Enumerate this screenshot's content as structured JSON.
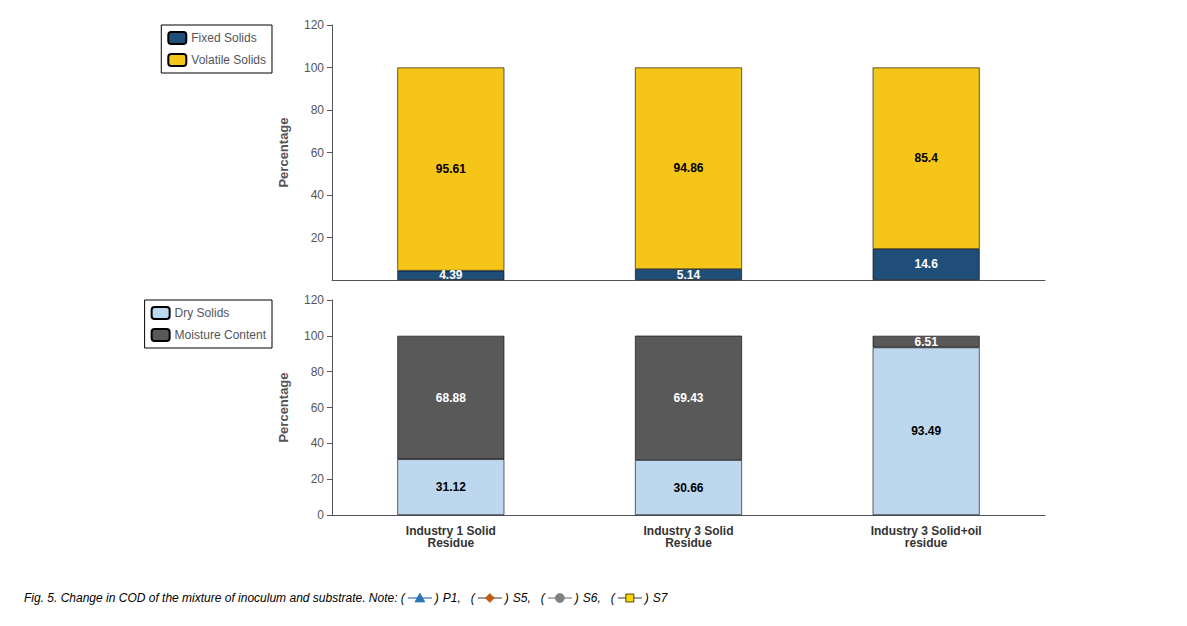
{
  "chart_data": [
    {
      "type": "bar",
      "stacked": true,
      "data_labels": true,
      "grid": false,
      "legend": "upper left",
      "tick_labels": "y",
      "ylabel": "Percentage",
      "categories": [
        "Industry 1 Solid\nResidue",
        "Industry 3 Solid\nResidue",
        "Industry 3 Solid+oil\nresidue"
      ],
      "series": [
        {
          "name": "Fixed Solids",
          "color": "#1F4E79",
          "values": [
            4.39,
            5.14,
            14.6
          ]
        },
        {
          "name": "Volatile Solids",
          "color": "#F5C518",
          "values": [
            95.61,
            94.86,
            85.4
          ]
        }
      ],
      "ylim": [
        0,
        120
      ],
      "yticks": [
        20,
        40,
        60,
        80,
        100,
        120
      ],
      "annotations": [
        {
          "text": "Fig. 5. Change in COD of the mixture of inoculum and substrate. Note: "
        },
        {
          "before": "(",
          "marker": "triangle",
          "color": "#2E75B6",
          "line_color": "#2E75B6",
          "after": ")",
          "label": "P1,"
        },
        {
          "before": "(",
          "marker": "diamond",
          "color": "#C55A11",
          "line_color": "#595959",
          "after": ")",
          "label": "S5,"
        },
        {
          "before": "(",
          "marker": "circle",
          "color": "#808080",
          "line_color": "#808080",
          "after": ")",
          "label": "S6,"
        },
        {
          "before": "(",
          "marker": "square",
          "color": "#FFD700",
          "edge_color": "#000000",
          "line_color": "#595959",
          "after": ")",
          "label": "S7"
        }
      ]
    },
    {
      "type": "bar",
      "stacked": true,
      "data_labels": true,
      "grid": false,
      "legend": "upper left",
      "ylabel": "Percentage",
      "categories": [
        "Industry 1 Solid\nResidue",
        "Industry 3 Solid\nResidue",
        "Industry 3 Solid+oil\nresidue"
      ],
      "series": [
        {
          "name": "Dry Solids",
          "color": "#BDD7EE",
          "values": [
            31.12,
            30.66,
            93.49
          ]
        },
        {
          "name": "Moisture Content",
          "color": "#595959",
          "values": [
            68.88,
            69.43,
            6.51
          ]
        }
      ],
      "ylim": [
        0,
        120
      ],
      "yticks": [
        0,
        20,
        40,
        60,
        80,
        100,
        120
      ]
    }
  ]
}
